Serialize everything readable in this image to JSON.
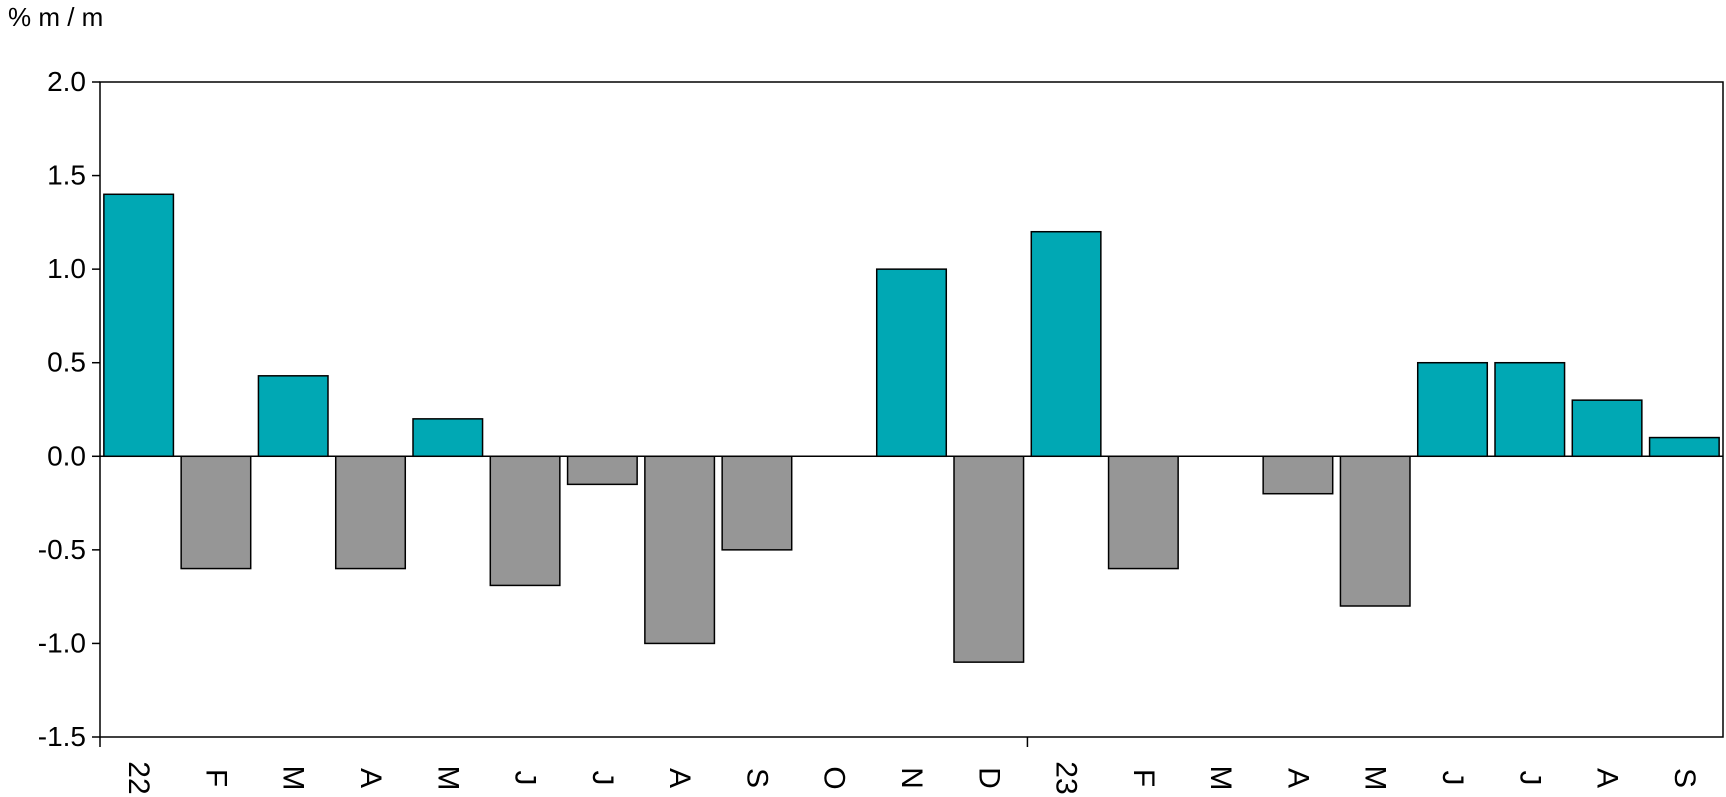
{
  "chart_data": {
    "type": "bar",
    "ylabel": "% m / m",
    "ylim": [
      -1.5,
      2.0
    ],
    "yticks": [
      "2.0",
      "1.5",
      "1.0",
      "0.5",
      "0.0",
      "-0.5",
      "-1.0",
      "-1.5"
    ],
    "ytick_values": [
      2.0,
      1.5,
      1.0,
      0.5,
      0.0,
      -0.5,
      -1.0,
      -1.5
    ],
    "categories": [
      "22",
      "F",
      "M",
      "A",
      "M",
      "J",
      "J",
      "A",
      "S",
      "O",
      "N",
      "D",
      "23",
      "F",
      "M",
      "A",
      "M",
      "J",
      "J",
      "A",
      "S"
    ],
    "values": [
      1.4,
      -0.6,
      0.43,
      -0.6,
      0.2,
      -0.69,
      -0.15,
      -1.0,
      -0.5,
      0.0,
      1.0,
      -1.1,
      1.2,
      -0.6,
      0.0,
      -0.2,
      -0.8,
      0.5,
      0.5,
      0.3,
      0.1
    ],
    "grid": false,
    "colors": {
      "positive": "#00a8b4",
      "negative": "#969696",
      "stroke": "#000000"
    }
  }
}
